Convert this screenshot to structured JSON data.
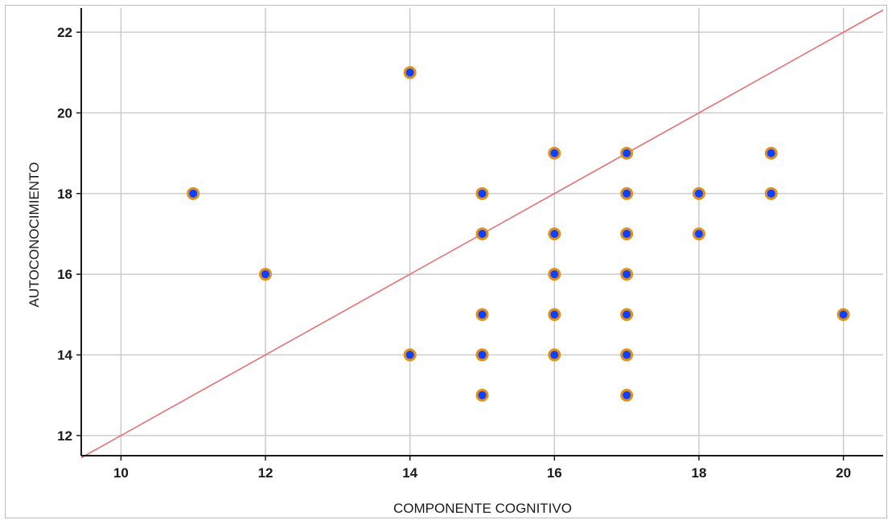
{
  "chart_data": {
    "type": "scatter",
    "xlabel": "COMPONENTE COGNITIVO",
    "ylabel": "AUTOCONOCIMIENTO",
    "xlim": [
      9.45,
      20.55
    ],
    "ylim": [
      11.5,
      22.6
    ],
    "xticks": [
      10,
      12,
      14,
      16,
      18,
      20
    ],
    "yticks": [
      12,
      14,
      16,
      18,
      20,
      22
    ],
    "grid": true,
    "points": [
      {
        "x": 11,
        "y": 18
      },
      {
        "x": 12,
        "y": 16
      },
      {
        "x": 14,
        "y": 21
      },
      {
        "x": 14,
        "y": 14
      },
      {
        "x": 15,
        "y": 18
      },
      {
        "x": 15,
        "y": 17
      },
      {
        "x": 15,
        "y": 15
      },
      {
        "x": 15,
        "y": 14
      },
      {
        "x": 15,
        "y": 13
      },
      {
        "x": 16,
        "y": 19
      },
      {
        "x": 16,
        "y": 17
      },
      {
        "x": 16,
        "y": 16
      },
      {
        "x": 16,
        "y": 15
      },
      {
        "x": 16,
        "y": 14
      },
      {
        "x": 17,
        "y": 19
      },
      {
        "x": 17,
        "y": 18
      },
      {
        "x": 17,
        "y": 17
      },
      {
        "x": 17,
        "y": 16
      },
      {
        "x": 17,
        "y": 15
      },
      {
        "x": 17,
        "y": 14
      },
      {
        "x": 17,
        "y": 13
      },
      {
        "x": 18,
        "y": 18
      },
      {
        "x": 18,
        "y": 17
      },
      {
        "x": 19,
        "y": 19
      },
      {
        "x": 19,
        "y": 18
      },
      {
        "x": 20,
        "y": 15
      }
    ],
    "reference_line": {
      "from": [
        9.45,
        11.45
      ],
      "to": [
        20.55,
        22.55
      ],
      "color": "#e87070"
    },
    "colors": {
      "marker_fill": "#1040ff",
      "marker_edge": "#e0901c",
      "grid": "#c8c8c8",
      "axis": "#1a1a1a"
    }
  }
}
